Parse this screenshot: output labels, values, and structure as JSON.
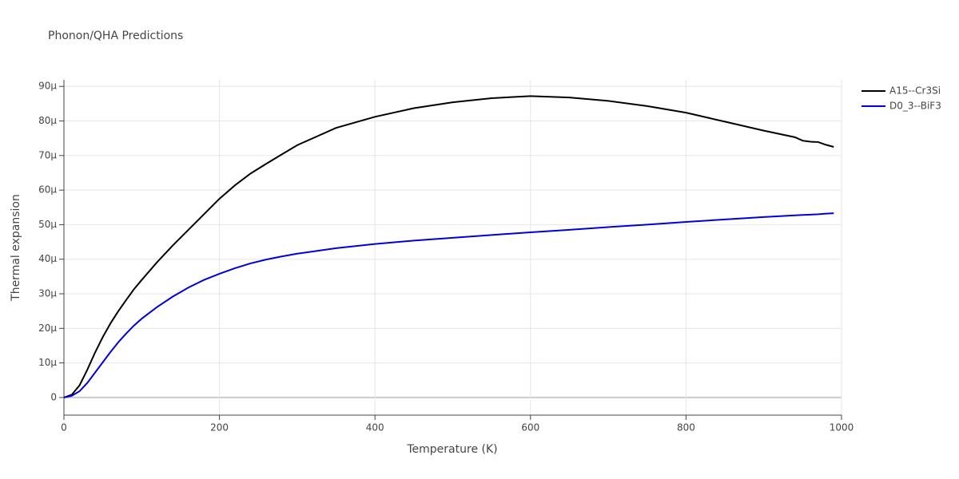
{
  "chart_data": {
    "type": "line",
    "title": "Phonon/QHA Predictions",
    "x_label": "Temperature (K)",
    "y_label": "Thermal expansion",
    "x": [
      0,
      10,
      20,
      30,
      40,
      50,
      60,
      70,
      80,
      90,
      100,
      120,
      140,
      160,
      180,
      200,
      220,
      240,
      260,
      280,
      300,
      350,
      400,
      450,
      500,
      550,
      600,
      650,
      700,
      750,
      800,
      850,
      900,
      940,
      950,
      960,
      970,
      980,
      990
    ],
    "series": [
      {
        "name": "A15--Cr3Si",
        "color": "#000000",
        "values": [
          0,
          8e-07,
          3.5e-06,
          8e-06,
          1.3e-05,
          1.75e-05,
          2.15e-05,
          2.5e-05,
          2.82e-05,
          3.13e-05,
          3.4e-05,
          3.92e-05,
          4.4e-05,
          4.85e-05,
          5.3e-05,
          5.75e-05,
          6.14e-05,
          6.48e-05,
          6.76e-05,
          7.03e-05,
          7.3e-05,
          7.8e-05,
          8.12e-05,
          8.37e-05,
          8.54e-05,
          8.66e-05,
          8.72e-05,
          8.68e-05,
          8.58e-05,
          8.43e-05,
          8.24e-05,
          7.98e-05,
          7.72e-05,
          7.53e-05,
          7.43e-05,
          7.4e-05,
          7.39e-05,
          7.31e-05,
          7.25e-05
        ]
      },
      {
        "name": "D0_3--BiF3",
        "color": "#0000dd",
        "values": [
          0,
          5e-07,
          1.8e-06,
          4.2e-06,
          7.2e-06,
          1.02e-05,
          1.32e-05,
          1.6e-05,
          1.85e-05,
          2.08e-05,
          2.28e-05,
          2.62e-05,
          2.92e-05,
          3.18e-05,
          3.4e-05,
          3.58e-05,
          3.74e-05,
          3.88e-05,
          3.99e-05,
          4.08e-05,
          4.16e-05,
          4.32e-05,
          4.44e-05,
          4.54e-05,
          4.62e-05,
          4.7e-05,
          4.78e-05,
          4.85e-05,
          4.93e-05,
          5e-05,
          5.08e-05,
          5.15e-05,
          5.22e-05,
          5.27e-05,
          5.28e-05,
          5.29e-05,
          5.3e-05,
          5.32e-05,
          5.33e-05
        ]
      }
    ],
    "xlim": [
      0,
      1000
    ],
    "xticks": [
      0,
      200,
      400,
      600,
      800,
      1000
    ],
    "ylim": [
      -5.1e-06,
      9.19e-05
    ],
    "yticks": [
      0,
      {
        "value": 1e-05,
        "label": "10μ"
      },
      {
        "value": 2e-05,
        "label": "20μ"
      },
      {
        "value": 3e-05,
        "label": "30μ"
      },
      {
        "value": 4e-05,
        "label": "40μ"
      },
      {
        "value": 5e-05,
        "label": "50μ"
      },
      {
        "value": 6e-05,
        "label": "60μ"
      },
      {
        "value": 7e-05,
        "label": "70μ"
      },
      {
        "value": 8e-05,
        "label": "80μ"
      },
      {
        "value": 9e-05,
        "label": "90μ"
      }
    ],
    "grid": true,
    "legend": "top-right"
  }
}
